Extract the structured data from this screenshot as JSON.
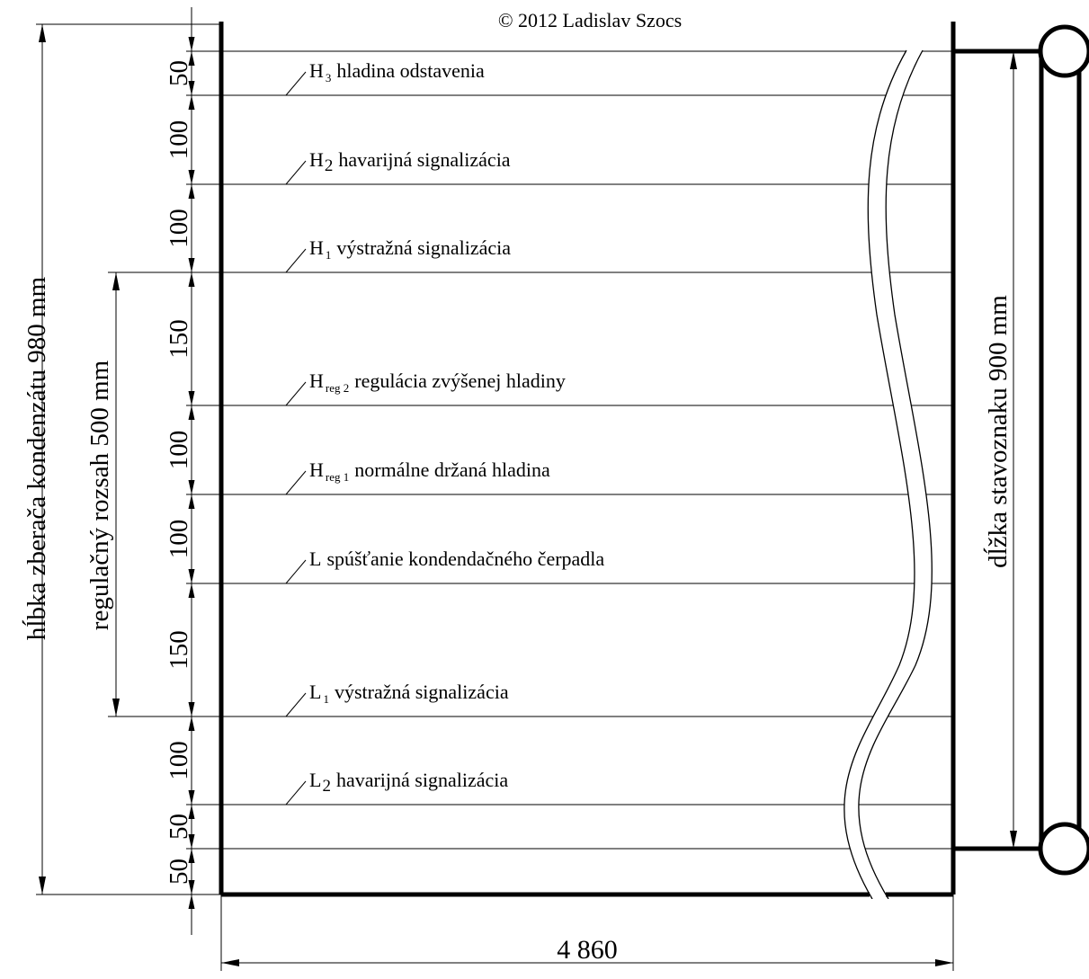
{
  "copyright": "© 2012 Ladislav Szocs",
  "levels": [
    {
      "key": "H3",
      "main": "H",
      "sub": "3",
      "sub_small": true,
      "text": "hladina odstavenia"
    },
    {
      "key": "H2",
      "main": "H",
      "sub": "2",
      "sub_small": false,
      "text": "havarijná signalizácia"
    },
    {
      "key": "H1",
      "main": "H",
      "sub": "1",
      "sub_small": true,
      "text": "výstražná signalizácia"
    },
    {
      "key": "Hreg2",
      "main": "H",
      "sub": "reg 2",
      "sub_small": true,
      "text": "regulácia zvýšenej hladiny"
    },
    {
      "key": "Hreg1",
      "main": "H",
      "sub": "reg 1",
      "sub_small": true,
      "text": "normálne držaná hladina"
    },
    {
      "key": "L",
      "main": "L",
      "sub": "",
      "sub_small": false,
      "text": "spúšťanie kondendačného čerpadla"
    },
    {
      "key": "L1",
      "main": "L",
      "sub": "1",
      "sub_small": true,
      "text": "výstražná signalizácia"
    },
    {
      "key": "L2",
      "main": "L",
      "sub": "2",
      "sub_small": false,
      "text": "havarijná signalizácia"
    }
  ],
  "segment_labels": [
    "50",
    "100",
    "100",
    "150",
    "100",
    "100",
    "150",
    "100",
    "50",
    "50"
  ],
  "dimension_labels": {
    "total_depth": "hĺbka zberača kondenzátu 980 mm",
    "regulation_range": "regulačný rozsah 500 mm",
    "gauge_length": "dĺžka stavoznaku 900 mm",
    "width": "4 860"
  }
}
